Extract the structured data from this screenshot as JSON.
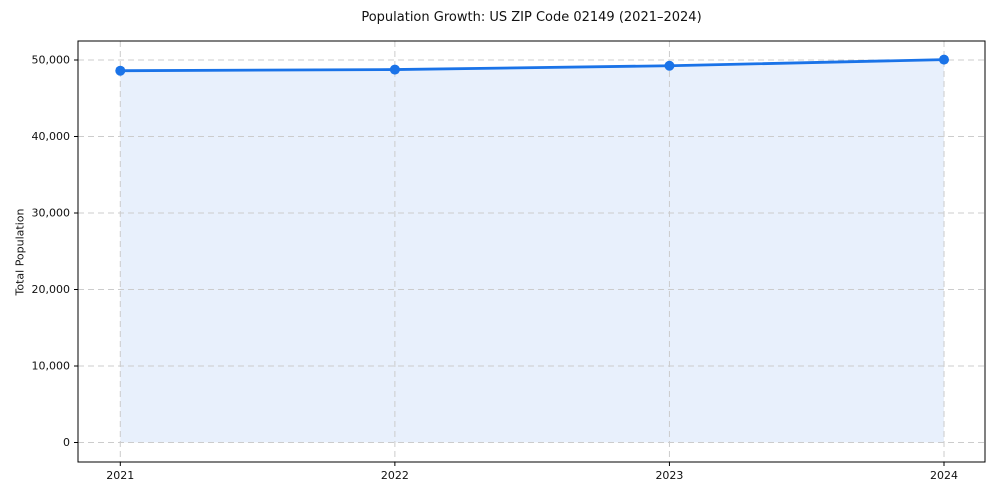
{
  "chart_data": {
    "type": "area",
    "title": "Population Growth: US ZIP Code 02149 (2021–2024)",
    "xlabel": "",
    "ylabel": "Total Population",
    "x": [
      2021,
      2022,
      2023,
      2024
    ],
    "xtick_labels": [
      "2021",
      "2022",
      "2023",
      "2024"
    ],
    "series": [
      {
        "name": "Total Population",
        "values": [
          48600,
          48750,
          49250,
          50050
        ]
      }
    ],
    "yticks": [
      0,
      10000,
      20000,
      30000,
      40000,
      50000
    ],
    "ytick_labels": [
      "0",
      "10,000",
      "20,000",
      "30,000",
      "40,000",
      "50,000"
    ],
    "ylim": [
      0,
      52500
    ],
    "grid": true,
    "grid_style": "dashed",
    "legend": false,
    "colors": {
      "line": "#1a73e8",
      "marker": "#1a73e8",
      "fill": "#e8f0fc",
      "grid": "#cccccc",
      "spine": "#000000",
      "text": "#111111",
      "background": "#ffffff"
    }
  }
}
